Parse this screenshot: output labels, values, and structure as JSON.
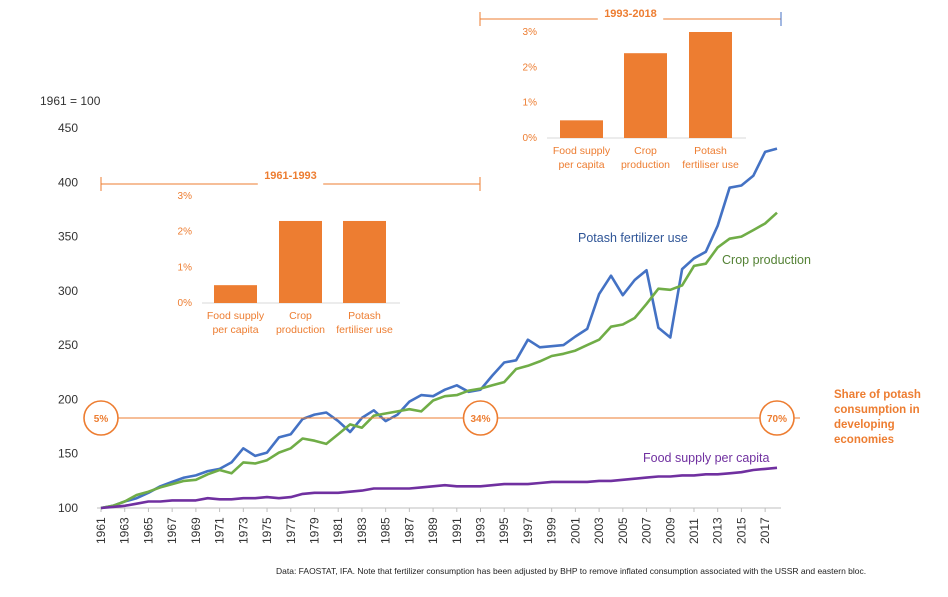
{
  "chart_data": {
    "type": "line",
    "title": "",
    "ylabel": "1961 = 100",
    "ylim": [
      100,
      450
    ],
    "yticks": [
      100,
      150,
      200,
      250,
      300,
      350,
      400,
      450
    ],
    "xlim": [
      1961,
      2018
    ],
    "xticks": [
      1961,
      1963,
      1965,
      1967,
      1969,
      1971,
      1973,
      1975,
      1977,
      1979,
      1981,
      1983,
      1985,
      1987,
      1989,
      1991,
      1993,
      1995,
      1997,
      1999,
      2001,
      2003,
      2005,
      2007,
      2009,
      2011,
      2013,
      2015,
      2017
    ],
    "years": [
      1961,
      1962,
      1963,
      1964,
      1965,
      1966,
      1967,
      1968,
      1969,
      1970,
      1971,
      1972,
      1973,
      1974,
      1975,
      1976,
      1977,
      1978,
      1979,
      1980,
      1981,
      1982,
      1983,
      1984,
      1985,
      1986,
      1987,
      1988,
      1989,
      1990,
      1991,
      1992,
      1993,
      1994,
      1995,
      1996,
      1997,
      1998,
      1999,
      2000,
      2001,
      2002,
      2003,
      2004,
      2005,
      2006,
      2007,
      2008,
      2009,
      2010,
      2011,
      2012,
      2013,
      2014,
      2015,
      2016,
      2017,
      2018
    ],
    "series": [
      {
        "name": "Potash fertilizer use",
        "color": "#4472C4",
        "values": [
          100,
          102,
          106,
          109,
          114,
          120,
          124,
          128,
          130,
          134,
          136,
          142,
          155,
          148,
          151,
          165,
          168,
          182,
          186,
          188,
          180,
          170,
          183,
          190,
          180,
          186,
          198,
          204,
          203,
          209,
          213,
          207,
          209,
          222,
          234,
          236,
          255,
          248,
          249,
          250,
          258,
          265,
          297,
          314,
          296,
          310,
          319,
          266,
          257,
          320,
          330,
          336,
          360,
          395,
          397,
          406,
          428,
          431
        ]
      },
      {
        "name": "Crop production",
        "color": "#70AD47",
        "values": [
          100,
          102,
          106,
          112,
          115,
          119,
          122,
          125,
          126,
          131,
          135,
          132,
          142,
          141,
          144,
          151,
          155,
          164,
          162,
          159,
          168,
          177,
          174,
          185,
          187,
          189,
          191,
          189,
          199,
          203,
          204,
          208,
          210,
          213,
          216,
          228,
          231,
          235,
          240,
          242,
          245,
          250,
          255,
          267,
          269,
          275,
          288,
          302,
          301,
          305,
          323,
          325,
          340,
          348,
          350,
          356,
          362,
          372
        ]
      },
      {
        "name": "Food supply per capita",
        "color": "#7030A0",
        "values": [
          100,
          101,
          102,
          104,
          106,
          106,
          107,
          107,
          107,
          109,
          108,
          108,
          109,
          109,
          110,
          109,
          110,
          113,
          114,
          114,
          114,
          115,
          116,
          118,
          118,
          118,
          118,
          119,
          120,
          121,
          120,
          120,
          120,
          121,
          122,
          122,
          122,
          123,
          124,
          124,
          124,
          124,
          125,
          125,
          126,
          127,
          128,
          129,
          129,
          130,
          130,
          131,
          131,
          132,
          133,
          135,
          136,
          137
        ]
      }
    ],
    "series_labels": {
      "potash": "Potash fertilizer use",
      "crop": "Crop production",
      "food": "Food supply per capita"
    },
    "insets": [
      {
        "period": "1961-1993",
        "type": "bar",
        "ylim": [
          0,
          3
        ],
        "yticks": [
          "0%",
          "1%",
          "2%",
          "3%"
        ],
        "bars": [
          {
            "label1": "Food supply",
            "label2": "per capita",
            "value": 0.5
          },
          {
            "label1": "Crop",
            "label2": "production",
            "value": 2.3
          },
          {
            "label1": "Potash",
            "label2": "fertiliser use",
            "value": 2.3
          }
        ]
      },
      {
        "period": "1993-2018",
        "type": "bar",
        "ylim": [
          0,
          3
        ],
        "yticks": [
          "0%",
          "1%",
          "2%",
          "3%"
        ],
        "bars": [
          {
            "label1": "Food supply",
            "label2": "per capita",
            "value": 0.5
          },
          {
            "label1": "Crop",
            "label2": "production",
            "value": 2.4
          },
          {
            "label1": "Potash",
            "label2": "fertiliser use",
            "value": 3.0
          }
        ]
      }
    ],
    "share": {
      "label1": "Share of potash",
      "label2": "consumption in",
      "label3": "developing",
      "label4": "economies",
      "markers": [
        {
          "year": 1961,
          "value": "5%"
        },
        {
          "year": 1993,
          "value": "34%"
        },
        {
          "year": 2018,
          "value": "70%"
        }
      ]
    },
    "colors": {
      "accent": "#ED7D31",
      "line_ref": "#ED7D31"
    }
  },
  "source_note": "Data: FAOSTAT, IFA. Note that fertilizer consumption has been adjusted by BHP to remove inflated consumption associated with the USSR and eastern bloc."
}
